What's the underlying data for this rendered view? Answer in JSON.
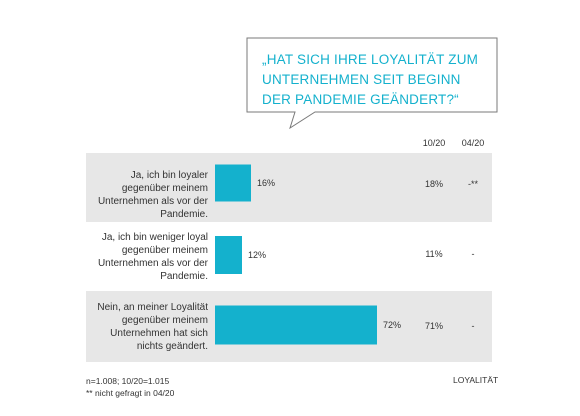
{
  "question": "„HAT SICH IHRE LOYALITÄT ZUM UNTERNEHMEN SEIT BEGINN DER PANDEMIE GEÄNDERT?“",
  "colors": {
    "bar": "#14b1cd",
    "accent_text": "#14b1cd",
    "row_shade": "#e7e7e7",
    "bubble_border": "#7a7a7a"
  },
  "column_headers": [
    "10/20",
    "04/20"
  ],
  "chart_data": {
    "type": "bar",
    "orientation": "horizontal",
    "categories": [
      "Ja, ich bin loyaler gegenüber meinem Unternehmen als vor der Pandemie.",
      "Ja, ich bin weniger loyal gegenüber meinem Unternehmen als vor der Pandemie.",
      "Nein, an meiner Loyalität gegenüber meinem Unternehmen hat sich nichts geändert."
    ],
    "series": [
      {
        "values": [
          16,
          12,
          72
        ]
      }
    ],
    "value_labels": [
      "16%",
      "12%",
      "72%"
    ],
    "xlim": [
      0,
      100
    ],
    "comparison_columns": [
      {
        "header": "10/20",
        "values": [
          "18%",
          "11%",
          "71%"
        ]
      },
      {
        "header": "04/20",
        "values": [
          "-**",
          "-",
          "-"
        ]
      }
    ]
  },
  "footnotes": [
    "n=1.008; 10/20=1.015",
    "** nicht gefragt in 04/20"
  ],
  "footer_tag": "LOYALITÄT"
}
